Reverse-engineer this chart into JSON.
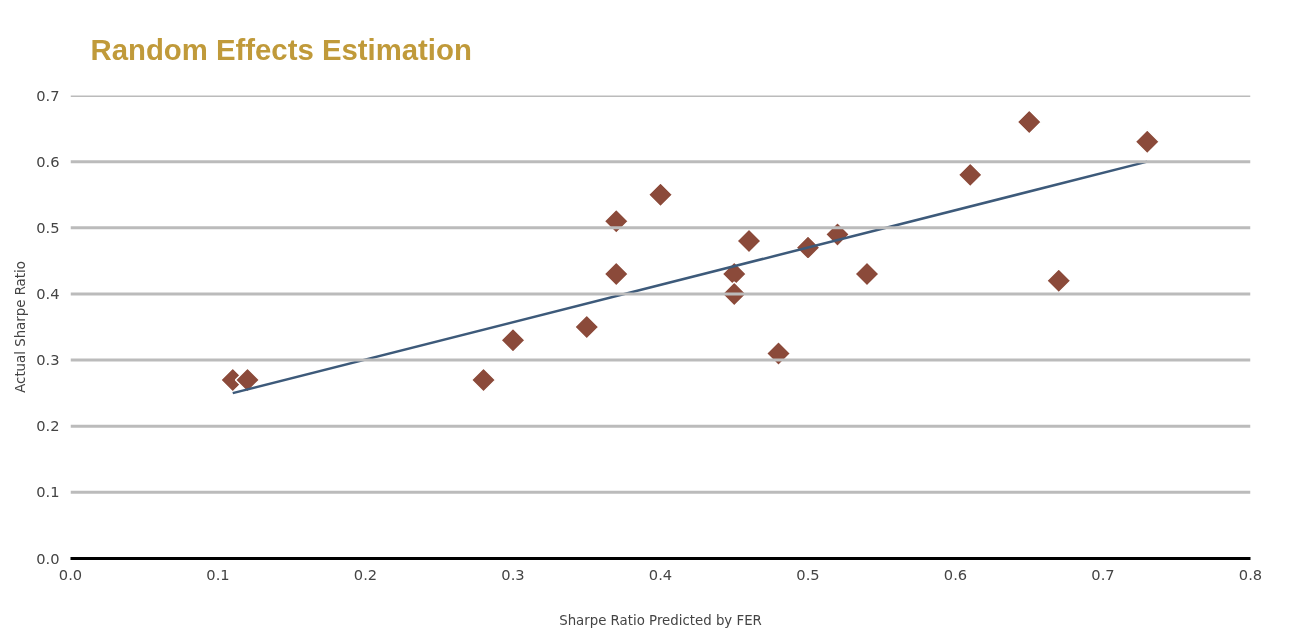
{
  "chart_data": {
    "type": "scatter",
    "title": "Random Effects Estimation",
    "xlabel": "Sharpe Ratio Predicted by FER",
    "ylabel": "Actual Sharpe Ratio",
    "xlim": [
      0.0,
      0.8
    ],
    "xticks": [
      {
        "value": 0,
        "label": "0.0"
      },
      0.1,
      0.2,
      0.3,
      0.4,
      0.5,
      0.6,
      0.7,
      0.8
    ],
    "ylim": [
      0.0,
      0.7
    ],
    "yticks": [
      {
        "value": 0,
        "label": "0.0"
      },
      0.1,
      0.2,
      0.3,
      0.4,
      0.5,
      0.6,
      0.7
    ],
    "grid": "y",
    "marker": "diamond",
    "series": [
      {
        "color": "#8b4a3a",
        "x": [
          0.11,
          0.12,
          0.28,
          0.3,
          0.35,
          0.37,
          0.37,
          0.4,
          0.45,
          0.45,
          0.46,
          0.48,
          0.5,
          0.52,
          0.54,
          0.61,
          0.65,
          0.67,
          0.73
        ],
        "values": [
          0.27,
          0.27,
          0.27,
          0.33,
          0.35,
          0.43,
          0.51,
          0.55,
          0.43,
          0.4,
          0.48,
          0.31,
          0.47,
          0.49,
          0.43,
          0.58,
          0.66,
          0.42,
          0.63
        ]
      },
      {
        "type": "line",
        "marker": "none",
        "color": "#3d5a7a",
        "x": [
          0.11,
          0.73
        ],
        "values": [
          0.25,
          0.6
        ]
      }
    ]
  }
}
